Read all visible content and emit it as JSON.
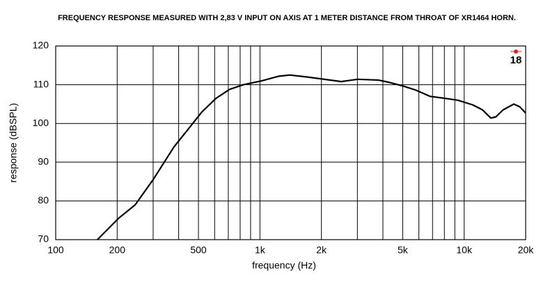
{
  "chart_data": {
    "type": "line",
    "title": "FREQUENCY RESPONSE MEASURED WITH 2,83 V INPUT ON AXIS AT 1 METER DISTANCE FROM THROAT OF XR1464 HORN.",
    "xlabel": "frequency (Hz)",
    "ylabel": "response (dBSPL)",
    "annotations": [
      "18"
    ],
    "x": [
      160,
      203,
      245,
      300,
      380,
      445,
      520,
      610,
      710,
      830,
      1020,
      1240,
      1400,
      1700,
      2000,
      2500,
      3000,
      3800,
      4300,
      5000,
      5800,
      6800,
      8000,
      9300,
      11000,
      12300,
      13500,
      14300,
      15500,
      17500,
      18700,
      20000
    ],
    "values": [
      70,
      75.5,
      79,
      85.5,
      94,
      98.5,
      103,
      106.5,
      108.8,
      110,
      111,
      112.2,
      112.5,
      112,
      111.5,
      110.8,
      111.4,
      111.2,
      110.6,
      109.7,
      108.6,
      107,
      106.5,
      106,
      104.8,
      103.5,
      101.4,
      101.7,
      103.5,
      105,
      104.3,
      102.7
    ],
    "color": "#000000",
    "xscale": "log",
    "xlim": [
      100,
      20000
    ],
    "xticks": [
      100,
      200,
      500,
      {
        "value": 1000,
        "label": "1k"
      },
      {
        "value": 2000,
        "label": "2k"
      },
      {
        "value": 5000,
        "label": "5k"
      },
      {
        "value": 10000,
        "label": "10k"
      },
      {
        "value": 20000,
        "label": "20k"
      }
    ],
    "xgrid": [
      200,
      300,
      400,
      500,
      600,
      700,
      800,
      900,
      1000,
      2000,
      3000,
      4000,
      5000,
      6000,
      7000,
      8000,
      9000,
      10000
    ],
    "ylim": [
      70,
      120
    ],
    "yticks": [
      70,
      80,
      90,
      100,
      110,
      120
    ],
    "grid": true
  }
}
